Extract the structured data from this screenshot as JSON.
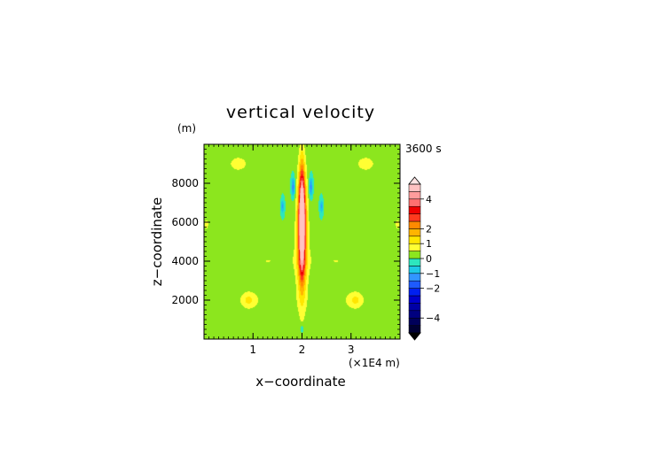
{
  "chart_data": {
    "type": "heatmap",
    "title": "vertical velocity",
    "time_label": "3600 s",
    "xlabel": "x−coordinate",
    "ylabel": "z−coordinate",
    "x_unit": "(×1E4 m)",
    "y_unit": "(m)",
    "xlim": [
      0,
      4
    ],
    "ylim": [
      0,
      10000
    ],
    "x_ticks": [
      1,
      2,
      3
    ],
    "x_tick_labels": [
      "1",
      "2",
      "3"
    ],
    "y_ticks": [
      2000,
      4000,
      6000,
      8000
    ],
    "y_tick_labels": [
      "2000",
      "4000",
      "6000",
      "8000"
    ],
    "colorbar": {
      "levels": [
        -5,
        -4.5,
        -4,
        -3.5,
        -3,
        -2.5,
        -2,
        -1.5,
        -1,
        -0.5,
        0,
        0.5,
        1,
        1.5,
        2,
        2.5,
        3,
        3.5,
        4,
        4.5,
        5
      ],
      "colors": [
        "#000033",
        "#00005a",
        "#000080",
        "#0000a6",
        "#0000cc",
        "#0020f0",
        "#1e5aff",
        "#3296ff",
        "#1ec8e6",
        "#2de6be",
        "#8ce61e",
        "#ffff33",
        "#ffe600",
        "#ffb400",
        "#ff8a00",
        "#ff3a1e",
        "#f00000",
        "#ff7070",
        "#ff9c9c",
        "#ffc2c2"
      ],
      "tick_values": [
        4,
        2,
        1,
        0,
        -1,
        -2,
        -4
      ],
      "tick_labels": [
        "4",
        "2",
        "1",
        "0",
        "−1",
        "−2",
        "−4"
      ]
    },
    "features": [
      {
        "x": 2.0,
        "z": 6200,
        "sx": 0.06,
        "sz": 2400,
        "value": 4.8
      },
      {
        "x": 2.0,
        "z": 5400,
        "sx": 0.09,
        "sz": 3000,
        "value": 2.2
      },
      {
        "x": 2.0,
        "z": 4800,
        "sx": 0.18,
        "sz": 3800,
        "value": 0.7
      },
      {
        "x": 1.82,
        "z": 7800,
        "sx": 0.035,
        "sz": 500,
        "value": -1.6
      },
      {
        "x": 2.18,
        "z": 7800,
        "sx": 0.035,
        "sz": 500,
        "value": -1.6
      },
      {
        "x": 1.6,
        "z": 6800,
        "sx": 0.03,
        "sz": 350,
        "value": -1.1
      },
      {
        "x": 2.4,
        "z": 6800,
        "sx": 0.03,
        "sz": 350,
        "value": -1.1
      },
      {
        "x": 2.0,
        "z": 500,
        "sx": 0.03,
        "sz": 200,
        "value": -0.8
      },
      {
        "x": 0.9,
        "z": 2000,
        "sx": 0.16,
        "sz": 450,
        "value": 0.9
      },
      {
        "x": 3.1,
        "z": 2000,
        "sx": 0.16,
        "sz": 450,
        "value": 0.9
      },
      {
        "x": 0.7,
        "z": 9000,
        "sx": 0.35,
        "sz": 700,
        "value": 0.6
      },
      {
        "x": 3.3,
        "z": 9000,
        "sx": 0.35,
        "sz": 700,
        "value": 0.6
      },
      {
        "x": 1.3,
        "z": 4000,
        "sx": 0.55,
        "sz": 700,
        "value": 0.5
      },
      {
        "x": 2.7,
        "z": 4000,
        "sx": 0.55,
        "sz": 700,
        "value": 0.5
      },
      {
        "x": 1.2,
        "z": 2000,
        "sx": 0.5,
        "sz": 600,
        "value": 0.35
      },
      {
        "x": 2.8,
        "z": 2000,
        "sx": 0.5,
        "sz": 600,
        "value": 0.35
      },
      {
        "x": 0.05,
        "z": 5900,
        "sx": 0.08,
        "sz": 500,
        "value": 0.6
      },
      {
        "x": 3.95,
        "z": 5900,
        "sx": 0.08,
        "sz": 500,
        "value": 0.6
      },
      {
        "x": 1.4,
        "z": 7000,
        "sx": 0.12,
        "sz": 1400,
        "value": 0.4
      },
      {
        "x": 2.6,
        "z": 7000,
        "sx": 0.12,
        "sz": 1400,
        "value": 0.4
      }
    ],
    "grid": false
  }
}
